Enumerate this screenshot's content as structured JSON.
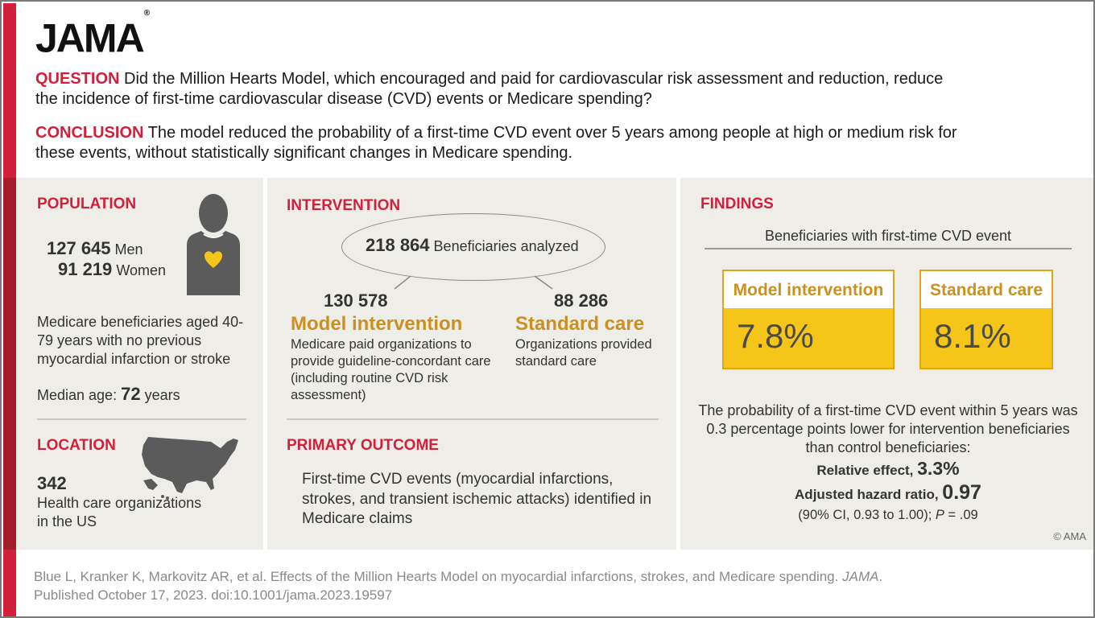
{
  "logo": {
    "text": "JAMA",
    "reg": "®"
  },
  "question": {
    "label": "QUESTION",
    "text": "Did the Million Hearts Model, which encouraged and paid for cardiovascular risk assessment and reduction, reduce the incidence of first-time cardiovascular disease (CVD) events or Medicare spending?"
  },
  "conclusion": {
    "label": "CONCLUSION",
    "text": "The model reduced the probability of a first-time CVD event over 5 years among people at high or medium risk for these events, without statistically significant changes in Medicare spending."
  },
  "population": {
    "title": "POPULATION",
    "men_count": "127 645",
    "men_label": "Men",
    "women_count": "91 219",
    "women_label": "Women",
    "description": "Medicare beneficiaries aged 40-79 years with no previous myocardial infarction or stroke",
    "median_label": "Median age:",
    "median_value": "72",
    "median_unit": "years"
  },
  "location": {
    "title": "LOCATION",
    "count": "342",
    "description": "Health care organizations in the US"
  },
  "intervention": {
    "title": "INTERVENTION",
    "total_count": "218 864",
    "total_label": "Beneficiaries analyzed",
    "model_count": "130 578",
    "model_title": "Model intervention",
    "model_desc": "Medicare paid organizations to provide guideline-concordant care (including routine CVD risk assessment)",
    "standard_count": "88 286",
    "standard_title": "Standard care",
    "standard_desc": "Organizations provided standard care"
  },
  "primary_outcome": {
    "title": "PRIMARY OUTCOME",
    "text": "First-time CVD events (myocardial infarctions, strokes, and transient ischemic attacks) identified in Medicare claims"
  },
  "findings": {
    "title": "FINDINGS",
    "subtitle": "Beneficiaries with first-time CVD event",
    "model_label": "Model intervention",
    "model_value": "7.8%",
    "standard_label": "Standard care",
    "standard_value": "8.1%",
    "summary": "The probability of a first-time CVD event within 5 years was 0.3 percentage points lower for intervention beneficiaries than control beneficiaries:",
    "relative_label": "Relative effect,",
    "relative_value": "3.3%",
    "hr_label": "Adjusted hazard ratio,",
    "hr_value": "0.97",
    "ci_text": "(90% CI, 0.93 to 1.00);",
    "p_label": "P",
    "p_text": "= .09",
    "copyright": "© AMA"
  },
  "citation": {
    "text": "Blue L, Kranker K, Markovitz AR, et al. Effects of the Million Hearts Model on myocardial infarctions, strokes, and Medicare spending.",
    "journal": "JAMA",
    "published": "Published October 17, 2023. doi:10.1001/jama.2023.19597"
  },
  "colors": {
    "accent_red": "#d2203a",
    "dark_red": "#a51c2a",
    "gold": "#c9911f",
    "yellow": "#f6c51a",
    "panel_bg": "#eeede7"
  },
  "icons": [
    "person-heart-icon",
    "us-map-icon"
  ]
}
